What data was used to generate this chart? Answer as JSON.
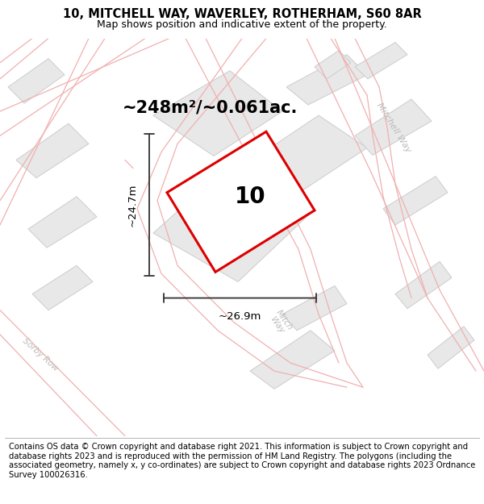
{
  "title": "10, MITCHELL WAY, WAVERLEY, ROTHERHAM, S60 8AR",
  "subtitle": "Map shows position and indicative extent of the property.",
  "footer": "Contains OS data © Crown copyright and database right 2021. This information is subject to Crown copyright and database rights 2023 and is reproduced with the permission of HM Land Registry. The polygons (including the associated geometry, namely x, y co-ordinates) are subject to Crown copyright and database rights 2023 Ordnance Survey 100026316.",
  "map_bg": "#f7f7f7",
  "plot_outline_color": "#dd0000",
  "plot_fill_color": "#ffffff",
  "plot_number": "10",
  "area_text": "~248m²/~0.061ac.",
  "width_text": "~26.9m",
  "height_text": "~24.7m",
  "road_line_color": "#f0b0b0",
  "road_fill_color": "#ffffff",
  "building_fill": "#e8e8e8",
  "building_stroke": "#cccccc",
  "road_label_color": "#bbbbbb",
  "title_fontsize": 10.5,
  "subtitle_fontsize": 9,
  "footer_fontsize": 7.2,
  "dim_line_color": "#333333",
  "area_fontsize": 15,
  "number_fontsize": 20
}
